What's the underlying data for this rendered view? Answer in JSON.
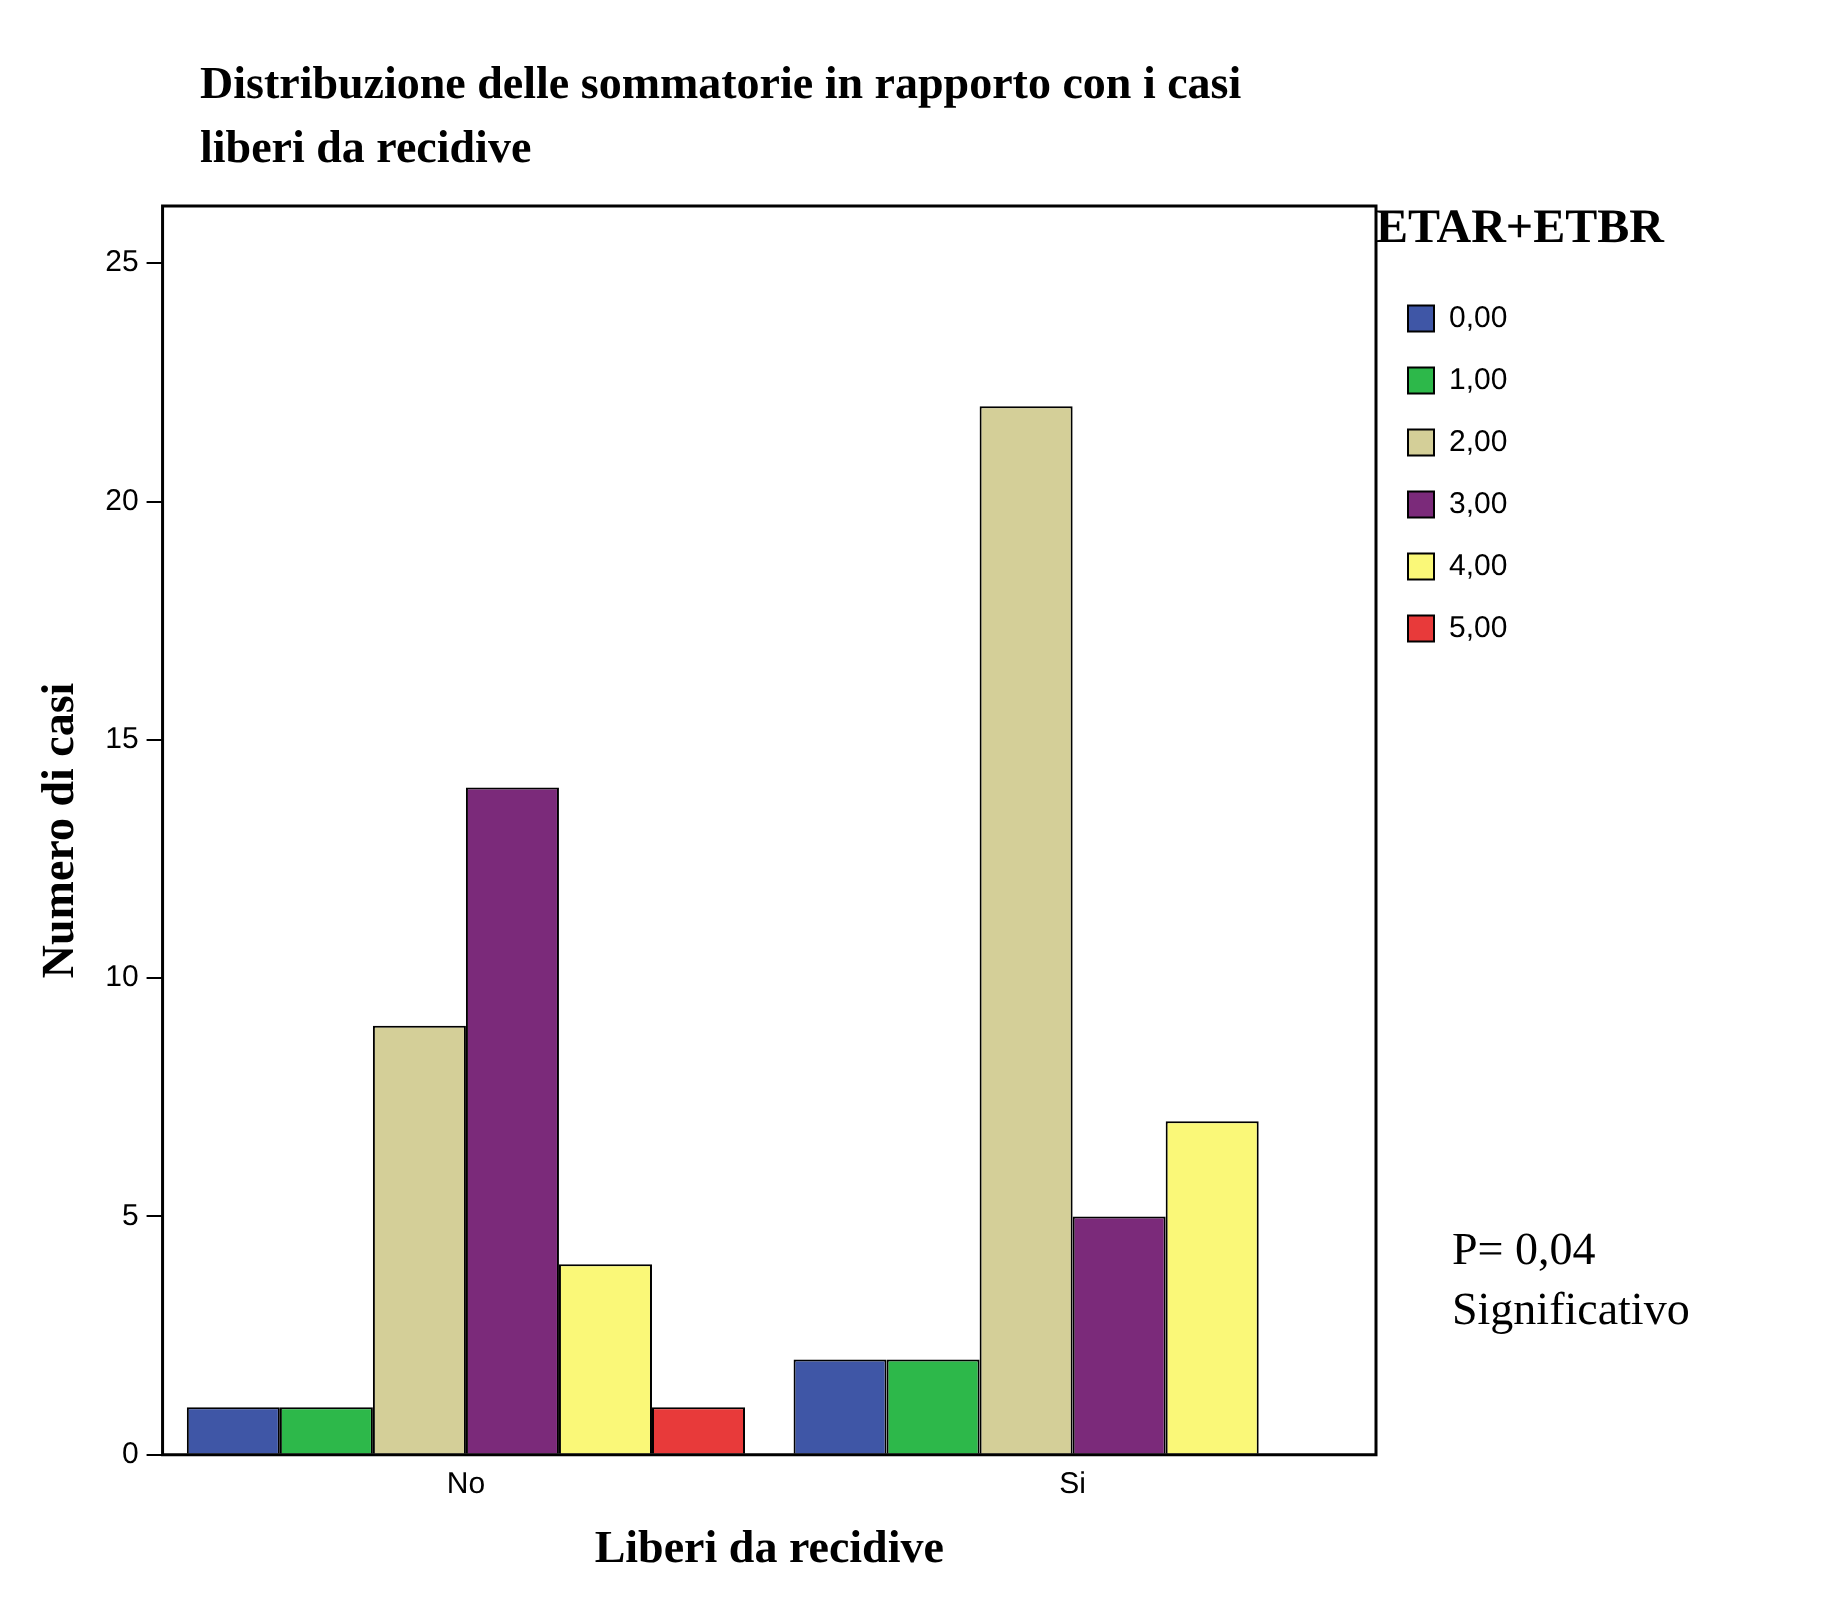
{
  "chart_data": {
    "type": "bar",
    "title": "Distribuzione delle sommatorie in rapporto con i casi liberi da recidive",
    "xlabel": "Liberi da recidive",
    "ylabel": "Numero di casi",
    "legend_title": "ETAR+ETBR",
    "categories": [
      "No",
      "Si"
    ],
    "series": [
      {
        "name": "0,00",
        "color": "#3f56a6",
        "values": [
          1,
          2
        ]
      },
      {
        "name": "1,00",
        "color": "#2db84a",
        "values": [
          1,
          2
        ]
      },
      {
        "name": "2,00",
        "color": "#d4cf98",
        "values": [
          9,
          22
        ]
      },
      {
        "name": "3,00",
        "color": "#7b2a7a",
        "values": [
          14,
          5
        ]
      },
      {
        "name": "4,00",
        "color": "#faf878",
        "values": [
          4,
          7
        ]
      },
      {
        "name": "5,00",
        "color": "#e83a3a",
        "values": [
          1,
          0
        ]
      }
    ],
    "ylim": [
      0,
      26.2
    ],
    "yticks": [
      0,
      5,
      10,
      15,
      20,
      25
    ],
    "grid": false,
    "legend": "top right",
    "annotations": [
      "P= 0,04",
      "Significativo"
    ]
  }
}
